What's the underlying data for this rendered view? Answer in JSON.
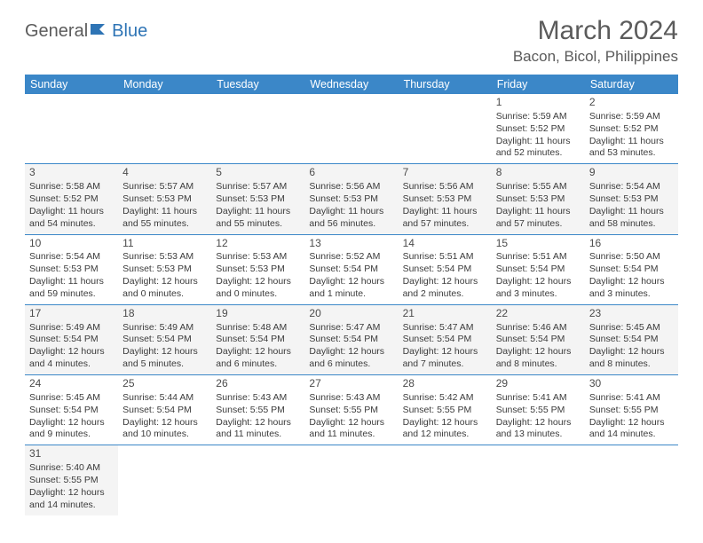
{
  "logo": {
    "part1": "General",
    "part2": "Blue"
  },
  "title": "March 2024",
  "location": "Bacon, Bicol, Philippines",
  "headerColor": "#3b87c8",
  "dayHeaders": [
    "Sunday",
    "Monday",
    "Tuesday",
    "Wednesday",
    "Thursday",
    "Friday",
    "Saturday"
  ],
  "weeks": [
    [
      null,
      null,
      null,
      null,
      null,
      {
        "n": "1",
        "sr": "Sunrise: 5:59 AM",
        "ss": "Sunset: 5:52 PM",
        "dl1": "Daylight: 11 hours",
        "dl2": "and 52 minutes."
      },
      {
        "n": "2",
        "sr": "Sunrise: 5:59 AM",
        "ss": "Sunset: 5:52 PM",
        "dl1": "Daylight: 11 hours",
        "dl2": "and 53 minutes."
      }
    ],
    [
      {
        "n": "3",
        "sr": "Sunrise: 5:58 AM",
        "ss": "Sunset: 5:52 PM",
        "dl1": "Daylight: 11 hours",
        "dl2": "and 54 minutes."
      },
      {
        "n": "4",
        "sr": "Sunrise: 5:57 AM",
        "ss": "Sunset: 5:53 PM",
        "dl1": "Daylight: 11 hours",
        "dl2": "and 55 minutes."
      },
      {
        "n": "5",
        "sr": "Sunrise: 5:57 AM",
        "ss": "Sunset: 5:53 PM",
        "dl1": "Daylight: 11 hours",
        "dl2": "and 55 minutes."
      },
      {
        "n": "6",
        "sr": "Sunrise: 5:56 AM",
        "ss": "Sunset: 5:53 PM",
        "dl1": "Daylight: 11 hours",
        "dl2": "and 56 minutes."
      },
      {
        "n": "7",
        "sr": "Sunrise: 5:56 AM",
        "ss": "Sunset: 5:53 PM",
        "dl1": "Daylight: 11 hours",
        "dl2": "and 57 minutes."
      },
      {
        "n": "8",
        "sr": "Sunrise: 5:55 AM",
        "ss": "Sunset: 5:53 PM",
        "dl1": "Daylight: 11 hours",
        "dl2": "and 57 minutes."
      },
      {
        "n": "9",
        "sr": "Sunrise: 5:54 AM",
        "ss": "Sunset: 5:53 PM",
        "dl1": "Daylight: 11 hours",
        "dl2": "and 58 minutes."
      }
    ],
    [
      {
        "n": "10",
        "sr": "Sunrise: 5:54 AM",
        "ss": "Sunset: 5:53 PM",
        "dl1": "Daylight: 11 hours",
        "dl2": "and 59 minutes."
      },
      {
        "n": "11",
        "sr": "Sunrise: 5:53 AM",
        "ss": "Sunset: 5:53 PM",
        "dl1": "Daylight: 12 hours",
        "dl2": "and 0 minutes."
      },
      {
        "n": "12",
        "sr": "Sunrise: 5:53 AM",
        "ss": "Sunset: 5:53 PM",
        "dl1": "Daylight: 12 hours",
        "dl2": "and 0 minutes."
      },
      {
        "n": "13",
        "sr": "Sunrise: 5:52 AM",
        "ss": "Sunset: 5:54 PM",
        "dl1": "Daylight: 12 hours",
        "dl2": "and 1 minute."
      },
      {
        "n": "14",
        "sr": "Sunrise: 5:51 AM",
        "ss": "Sunset: 5:54 PM",
        "dl1": "Daylight: 12 hours",
        "dl2": "and 2 minutes."
      },
      {
        "n": "15",
        "sr": "Sunrise: 5:51 AM",
        "ss": "Sunset: 5:54 PM",
        "dl1": "Daylight: 12 hours",
        "dl2": "and 3 minutes."
      },
      {
        "n": "16",
        "sr": "Sunrise: 5:50 AM",
        "ss": "Sunset: 5:54 PM",
        "dl1": "Daylight: 12 hours",
        "dl2": "and 3 minutes."
      }
    ],
    [
      {
        "n": "17",
        "sr": "Sunrise: 5:49 AM",
        "ss": "Sunset: 5:54 PM",
        "dl1": "Daylight: 12 hours",
        "dl2": "and 4 minutes."
      },
      {
        "n": "18",
        "sr": "Sunrise: 5:49 AM",
        "ss": "Sunset: 5:54 PM",
        "dl1": "Daylight: 12 hours",
        "dl2": "and 5 minutes."
      },
      {
        "n": "19",
        "sr": "Sunrise: 5:48 AM",
        "ss": "Sunset: 5:54 PM",
        "dl1": "Daylight: 12 hours",
        "dl2": "and 6 minutes."
      },
      {
        "n": "20",
        "sr": "Sunrise: 5:47 AM",
        "ss": "Sunset: 5:54 PM",
        "dl1": "Daylight: 12 hours",
        "dl2": "and 6 minutes."
      },
      {
        "n": "21",
        "sr": "Sunrise: 5:47 AM",
        "ss": "Sunset: 5:54 PM",
        "dl1": "Daylight: 12 hours",
        "dl2": "and 7 minutes."
      },
      {
        "n": "22",
        "sr": "Sunrise: 5:46 AM",
        "ss": "Sunset: 5:54 PM",
        "dl1": "Daylight: 12 hours",
        "dl2": "and 8 minutes."
      },
      {
        "n": "23",
        "sr": "Sunrise: 5:45 AM",
        "ss": "Sunset: 5:54 PM",
        "dl1": "Daylight: 12 hours",
        "dl2": "and 8 minutes."
      }
    ],
    [
      {
        "n": "24",
        "sr": "Sunrise: 5:45 AM",
        "ss": "Sunset: 5:54 PM",
        "dl1": "Daylight: 12 hours",
        "dl2": "and 9 minutes."
      },
      {
        "n": "25",
        "sr": "Sunrise: 5:44 AM",
        "ss": "Sunset: 5:54 PM",
        "dl1": "Daylight: 12 hours",
        "dl2": "and 10 minutes."
      },
      {
        "n": "26",
        "sr": "Sunrise: 5:43 AM",
        "ss": "Sunset: 5:55 PM",
        "dl1": "Daylight: 12 hours",
        "dl2": "and 11 minutes."
      },
      {
        "n": "27",
        "sr": "Sunrise: 5:43 AM",
        "ss": "Sunset: 5:55 PM",
        "dl1": "Daylight: 12 hours",
        "dl2": "and 11 minutes."
      },
      {
        "n": "28",
        "sr": "Sunrise: 5:42 AM",
        "ss": "Sunset: 5:55 PM",
        "dl1": "Daylight: 12 hours",
        "dl2": "and 12 minutes."
      },
      {
        "n": "29",
        "sr": "Sunrise: 5:41 AM",
        "ss": "Sunset: 5:55 PM",
        "dl1": "Daylight: 12 hours",
        "dl2": "and 13 minutes."
      },
      {
        "n": "30",
        "sr": "Sunrise: 5:41 AM",
        "ss": "Sunset: 5:55 PM",
        "dl1": "Daylight: 12 hours",
        "dl2": "and 14 minutes."
      }
    ],
    [
      {
        "n": "31",
        "sr": "Sunrise: 5:40 AM",
        "ss": "Sunset: 5:55 PM",
        "dl1": "Daylight: 12 hours",
        "dl2": "and 14 minutes."
      },
      null,
      null,
      null,
      null,
      null,
      null
    ]
  ]
}
